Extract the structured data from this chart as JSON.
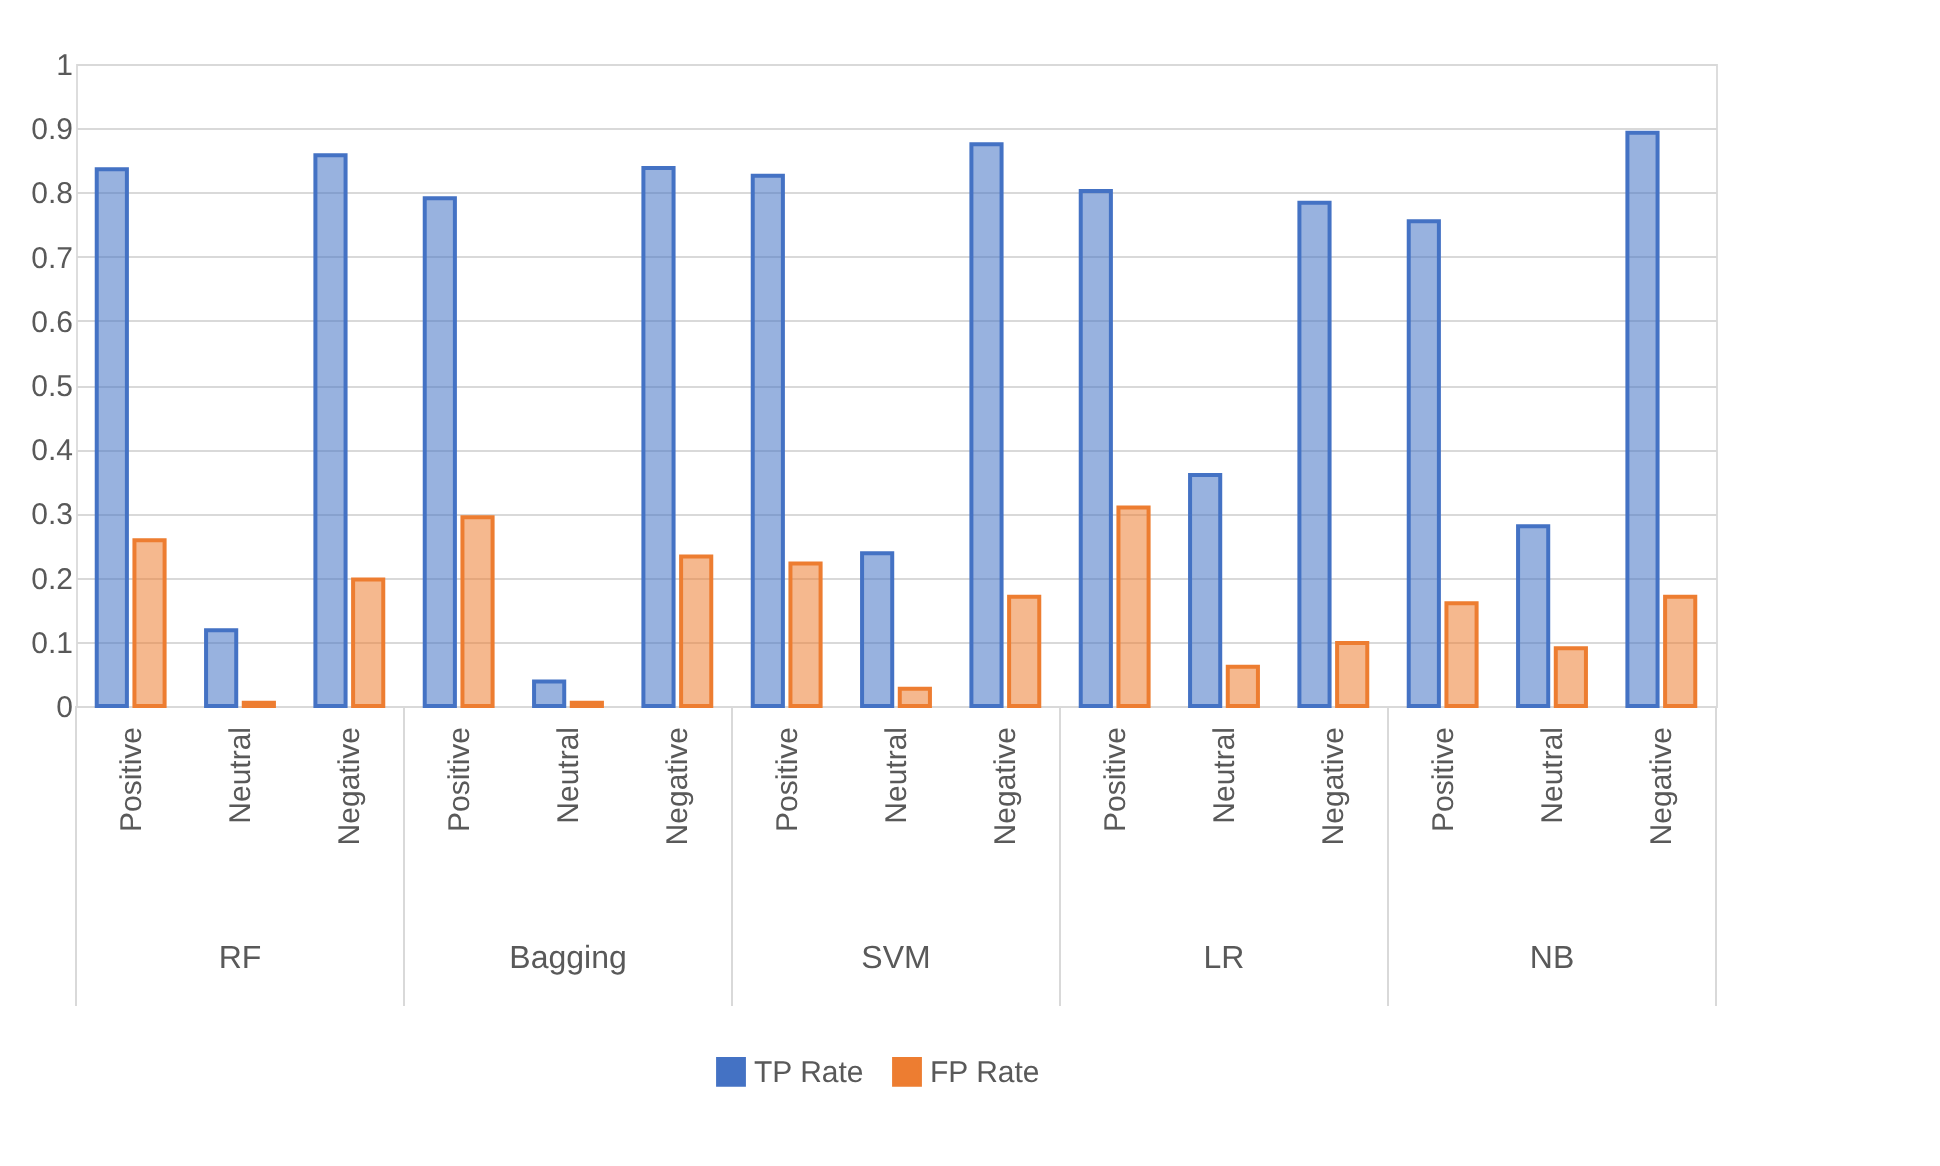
{
  "chart_data": {
    "type": "bar",
    "categories": [
      "Positive",
      "Neutral",
      "Negative",
      "Positive",
      "Neutral",
      "Negative",
      "Positive",
      "Neutral",
      "Negative",
      "Positive",
      "Neutral",
      "Negative",
      "Positive",
      "Neutral",
      "Negative"
    ],
    "annotations": [
      "RF",
      "Bagging",
      "SVM",
      "LR",
      "NB"
    ],
    "series": [
      {
        "name": "TP Rate",
        "color": "#4472c4",
        "values": [
          0.836,
          0.118,
          0.858,
          0.791,
          0.038,
          0.838,
          0.826,
          0.238,
          0.875,
          0.802,
          0.36,
          0.784,
          0.755,
          0.28,
          0.893
        ]
      },
      {
        "name": "FP Rate",
        "color": "#ed7d31",
        "values": [
          0.258,
          0.005,
          0.197,
          0.294,
          0.005,
          0.233,
          0.222,
          0.027,
          0.17,
          0.309,
          0.061,
          0.098,
          0.16,
          0.09,
          0.17
        ]
      }
    ],
    "ylim": [
      0,
      1
    ],
    "yticks": [
      0,
      0.1,
      0.2,
      0.3,
      0.4,
      0.5,
      0.6,
      0.7,
      0.8,
      0.9,
      1
    ],
    "grid": "y",
    "legend": "bottom"
  }
}
